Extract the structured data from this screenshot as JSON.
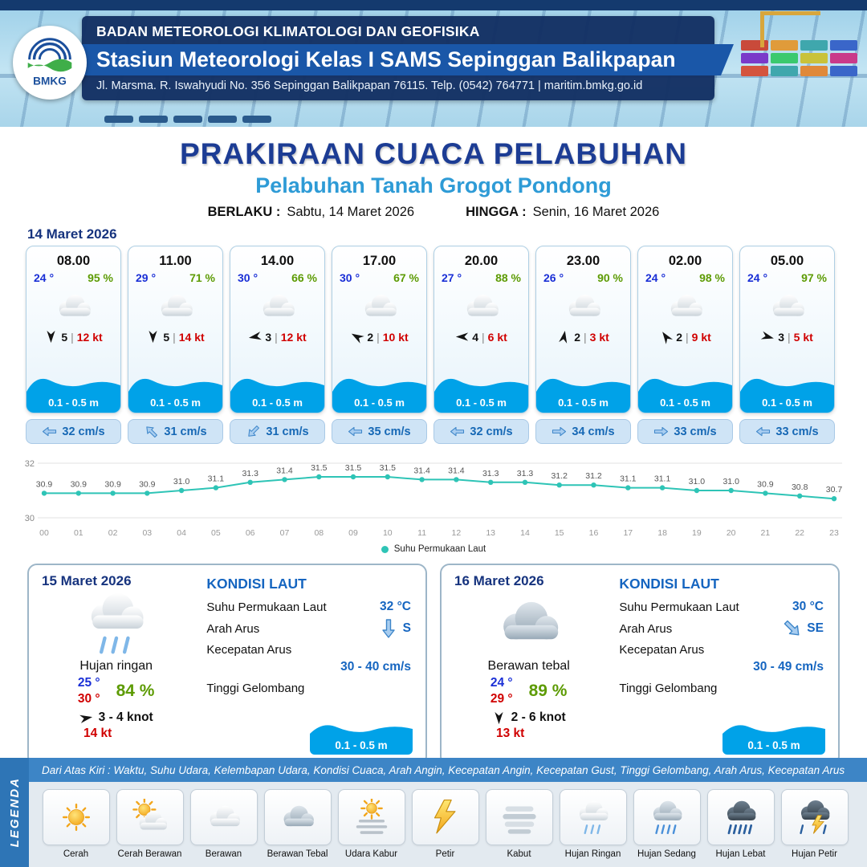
{
  "header": {
    "org": "BADAN METEOROLOGI KLIMATOLOGI DAN GEOFISIKA",
    "station": "Stasiun Meteorologi Kelas I SAMS Sepinggan Balikpapan",
    "address": "Jl. Marsma. R. Iswahyudi No. 356 Sepinggan Balikpapan 76115. Telp. (0542) 764771 | maritim.bmkg.go.id",
    "logo_label": "BMKG"
  },
  "title": {
    "main": "PRAKIRAAN CUACA PELABUHAN",
    "port": "Pelabuhan Tanah Grogot Pondong",
    "berlaku_label": "BERLAKU :",
    "berlaku_value": "Sabtu, 14 Maret 2026",
    "hingga_label": "HINGGA :",
    "hingga_value": "Senin, 16 Maret 2026"
  },
  "forecast_date": "14 Maret 2026",
  "colors": {
    "navy": "#16336b",
    "ribbon": "#1a57a8",
    "title_blue": "#1c3c94",
    "port_blue": "#2e9bd6",
    "wave_blue": "#00a2e8",
    "humidity_green": "#5d9b04",
    "gust_red": "#d00000",
    "temp_blue": "#1a2fd6",
    "value_blue": "#1565c0",
    "chart_teal": "#2ec4b6"
  },
  "cards": [
    {
      "time": "08.00",
      "temp": "24 °",
      "rh": "95 %",
      "icon": "cloud",
      "wind_val": "5",
      "wind_kt": "12 kt",
      "wind_deg": 90,
      "wave": "0.1 - 0.5 m",
      "current": "32 cm/s",
      "current_deg": 180
    },
    {
      "time": "11.00",
      "temp": "29 °",
      "rh": "71 %",
      "icon": "cloud",
      "wind_val": "5",
      "wind_kt": "14 kt",
      "wind_deg": 90,
      "wave": "0.1 - 0.5 m",
      "current": "31 cm/s",
      "current_deg": 225
    },
    {
      "time": "14.00",
      "temp": "30 °",
      "rh": "66 %",
      "icon": "cloud",
      "wind_val": "3",
      "wind_kt": "12 kt",
      "wind_deg": 170,
      "wave": "0.1 - 0.5 m",
      "current": "31 cm/s",
      "current_deg": 135
    },
    {
      "time": "17.00",
      "temp": "30 °",
      "rh": "67 %",
      "icon": "cloud",
      "wind_val": "2",
      "wind_kt": "10 kt",
      "wind_deg": 210,
      "wave": "0.1 - 0.5 m",
      "current": "35 cm/s",
      "current_deg": 180
    },
    {
      "time": "20.00",
      "temp": "27 °",
      "rh": "88 %",
      "icon": "cloud",
      "wind_val": "4",
      "wind_kt": "6 kt",
      "wind_deg": 180,
      "wave": "0.1 - 0.5 m",
      "current": "32 cm/s",
      "current_deg": 180
    },
    {
      "time": "23.00",
      "temp": "26 °",
      "rh": "90 %",
      "icon": "cloud",
      "wind_val": "2",
      "wind_kt": "3 kt",
      "wind_deg": 280,
      "wave": "0.1 - 0.5 m",
      "current": "34 cm/s",
      "current_deg": 0
    },
    {
      "time": "02.00",
      "temp": "24 °",
      "rh": "98 %",
      "icon": "cloud",
      "wind_val": "2",
      "wind_kt": "9 kt",
      "wind_deg": 235,
      "wave": "0.1 - 0.5 m",
      "current": "33 cm/s",
      "current_deg": 0
    },
    {
      "time": "05.00",
      "temp": "24 °",
      "rh": "97 %",
      "icon": "cloud",
      "wind_val": "3",
      "wind_kt": "5 kt",
      "wind_deg": 15,
      "wave": "0.1 - 0.5 m",
      "current": "33 cm/s",
      "current_deg": 180
    }
  ],
  "chart_data": {
    "type": "line",
    "series_label": "Suhu Permukaan Laut",
    "x": [
      "00",
      "01",
      "02",
      "03",
      "04",
      "05",
      "06",
      "07",
      "08",
      "09",
      "10",
      "11",
      "12",
      "13",
      "14",
      "15",
      "16",
      "17",
      "18",
      "19",
      "20",
      "21",
      "22",
      "23"
    ],
    "values": [
      30.9,
      30.9,
      30.9,
      30.9,
      31.0,
      31.1,
      31.3,
      31.4,
      31.5,
      31.5,
      31.5,
      31.4,
      31.4,
      31.3,
      31.3,
      31.2,
      31.2,
      31.1,
      31.1,
      31.0,
      31.0,
      30.9,
      30.8,
      30.7
    ],
    "ylim": [
      30,
      32
    ],
    "color": "#2ec4b6",
    "grid": true,
    "legend_position": "bottom"
  },
  "day_panels": [
    {
      "date": "15 Maret 2026",
      "icon": "rain-light",
      "condition": "Hujan ringan",
      "temp_min": "25 °",
      "temp_max": "30 °",
      "rh": "84 %",
      "wind": "3  - 4 knot",
      "wind_deg": 350,
      "gust": "14 kt",
      "sea": {
        "heading": "KONDISI LAUT",
        "sst_label": "Suhu Permukaan Laut",
        "sst": "32 °C",
        "arus_label": "Arah Arus",
        "dir": "S",
        "dir_deg": 90,
        "speed_label": "Kecepatan Arus",
        "speed": "30  - 40 cm/s",
        "wave_label": "Tinggi Gelombang",
        "wave": "0.1 - 0.5 m"
      }
    },
    {
      "date": "16 Maret 2026",
      "icon": "cloud-thick",
      "condition": "Berawan tebal",
      "temp_min": "24 °",
      "temp_max": "29 °",
      "rh": "89 %",
      "wind": "2  - 6 knot",
      "wind_deg": 90,
      "gust": "13 kt",
      "sea": {
        "heading": "KONDISI LAUT",
        "sst_label": "Suhu Permukaan Laut",
        "sst": "30 °C",
        "arus_label": "Arah Arus",
        "dir": "SE",
        "dir_deg": 45,
        "speed_label": "Kecepatan Arus",
        "speed": "30  - 49 cm/s",
        "wave_label": "Tinggi Gelombang",
        "wave": "0.1 - 0.5 m"
      }
    }
  ],
  "legend": {
    "header": "Dari Atas Kiri : Waktu, Suhu Udara, Kelembapan Udara, Kondisi Cuaca, Arah Angin, Kecepatan Angin, Kecepatan Gust, Tinggi Gelombang, Arah Arus, Kecepatan Arus",
    "tab": "LEGENDA",
    "items": [
      {
        "label": "Cerah",
        "icon": "sun"
      },
      {
        "label": "Cerah Berawan",
        "icon": "sun-cloud"
      },
      {
        "label": "Berawan",
        "icon": "cloud"
      },
      {
        "label": "Berawan Tebal",
        "icon": "cloud-thick"
      },
      {
        "label": "Udara Kabur",
        "icon": "haze"
      },
      {
        "label": "Petir",
        "icon": "lightning"
      },
      {
        "label": "Kabut",
        "icon": "fog"
      },
      {
        "label": "Hujan Ringan",
        "icon": "rain-light"
      },
      {
        "label": "Hujan Sedang",
        "icon": "rain-mid"
      },
      {
        "label": "Hujan Lebat",
        "icon": "rain-heavy"
      },
      {
        "label": "Hujan Petir",
        "icon": "storm"
      }
    ]
  }
}
